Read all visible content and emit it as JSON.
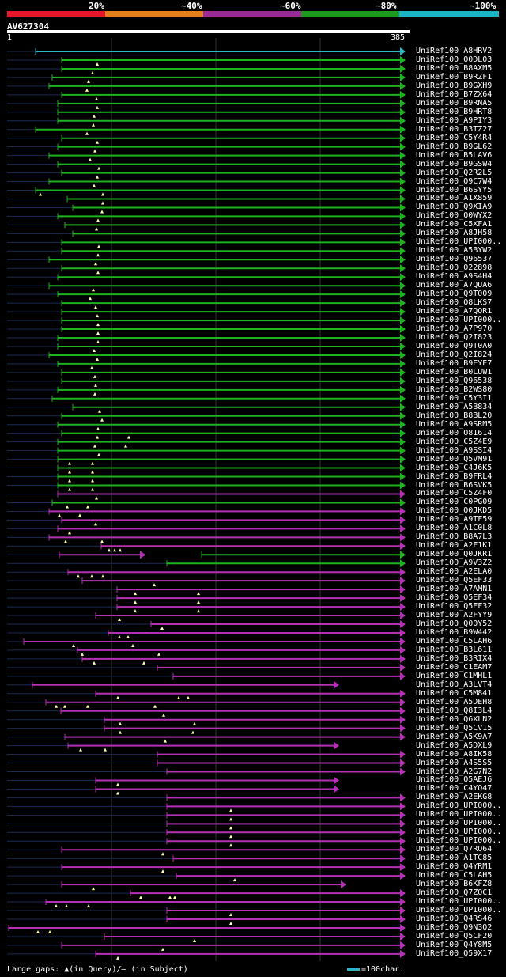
{
  "legend": {
    "labels": [
      "20%",
      "~40%",
      "~60%",
      "~80%",
      "~100%"
    ],
    "colors": [
      "#e8162a",
      "#e57f1c",
      "#9a2a96",
      "#1c9a1c",
      "#1bb4c4"
    ]
  },
  "query": {
    "name": "AV627304",
    "start": "1",
    "end": "385"
  },
  "footer": {
    "gaps": "Large gaps: ▲(in Query)/— (in Subject)",
    "scale": "=100char."
  },
  "hits": [
    {
      "name": "UniRef100_A8HRV2",
      "start": 45,
      "color": "cyan",
      "tri": [],
      "dash": []
    },
    {
      "name": "UniRef100_Q0DL03",
      "start": 78,
      "color": "green",
      "tri": [
        123
      ],
      "dash": []
    },
    {
      "name": "UniRef100_B8AXM5",
      "start": 78,
      "color": "green",
      "tri": [
        117
      ],
      "dash": []
    },
    {
      "name": "UniRef100_B9RZF1",
      "start": 66,
      "color": "green",
      "tri": [
        112
      ],
      "dash": []
    },
    {
      "name": "UniRef100_B9GXH9",
      "start": 62,
      "color": "green",
      "tri": [
        110
      ],
      "dash": []
    },
    {
      "name": "UniRef100_B7ZX64",
      "start": 78,
      "color": "green",
      "tri": [
        122
      ],
      "dash": []
    },
    {
      "name": "UniRef100_B9RNA5",
      "start": 73,
      "color": "green",
      "tri": [
        123
      ],
      "dash": []
    },
    {
      "name": "UniRef100_B9HRT8",
      "start": 73,
      "color": "green",
      "tri": [
        119
      ],
      "dash": []
    },
    {
      "name": "UniRef100_A9PIY3",
      "start": 73,
      "color": "green",
      "tri": [
        118
      ],
      "dash": []
    },
    {
      "name": "UniRef100_B3TZ27",
      "start": 45,
      "color": "green",
      "tri": [
        110
      ],
      "dash": []
    },
    {
      "name": "UniRef100_C5Y4R4",
      "start": 78,
      "color": "green",
      "tri": [
        123
      ],
      "dash": []
    },
    {
      "name": "UniRef100_B9GL62",
      "start": 73,
      "color": "green",
      "tri": [
        120
      ],
      "dash": []
    },
    {
      "name": "UniRef100_B5LAV6",
      "start": 62,
      "color": "green",
      "tri": [
        114
      ],
      "dash": []
    },
    {
      "name": "UniRef100_B9GSW4",
      "start": 73,
      "color": "green",
      "tri": [
        125
      ],
      "dash": []
    },
    {
      "name": "UniRef100_Q2R2L5",
      "start": 78,
      "color": "green",
      "tri": [
        123
      ],
      "dash": []
    },
    {
      "name": "UniRef100_Q9C7W4",
      "start": 62,
      "color": "green",
      "tri": [
        119
      ],
      "dash": []
    },
    {
      "name": "UniRef100_B6SYY5",
      "start": 45,
      "color": "green",
      "tri": [
        51,
        130
      ],
      "dash": []
    },
    {
      "name": "UniRef100_A1X859",
      "start": 85,
      "color": "green",
      "tri": [
        130
      ],
      "dash": []
    },
    {
      "name": "UniRef100_Q9XIA9",
      "start": 92,
      "color": "green",
      "tri": [
        129
      ],
      "dash": []
    },
    {
      "name": "UniRef100_Q0WYX2",
      "start": 73,
      "color": "green",
      "tri": [
        124
      ],
      "dash": []
    },
    {
      "name": "UniRef100_C5XFA1",
      "start": 82,
      "color": "green",
      "tri": [
        122
      ],
      "dash": []
    },
    {
      "name": "UniRef100_A8JH58",
      "start": 92,
      "color": "green",
      "tri": [],
      "dash": []
    },
    {
      "name": "UniRef100_UPI000..",
      "start": 78,
      "color": "green",
      "tri": [
        125
      ],
      "dash": []
    },
    {
      "name": "UniRef100_A5BYW2",
      "start": 78,
      "color": "green",
      "tri": [
        124
      ],
      "dash": []
    },
    {
      "name": "UniRef100_Q96537",
      "start": 62,
      "color": "green",
      "tri": [
        121
      ],
      "dash": []
    },
    {
      "name": "UniRef100_O22898",
      "start": 78,
      "color": "green",
      "tri": [
        124
      ],
      "dash": []
    },
    {
      "name": "UniRef100_A9S4H4",
      "start": 73,
      "color": "green",
      "tri": [],
      "dash": []
    },
    {
      "name": "UniRef100_A7QUA6",
      "start": 62,
      "color": "green",
      "tri": [
        118
      ],
      "dash": []
    },
    {
      "name": "UniRef100_Q9T009",
      "start": 73,
      "color": "green",
      "tri": [
        114
      ],
      "dash": []
    },
    {
      "name": "UniRef100_Q8LKS7",
      "start": 78,
      "color": "green",
      "tri": [
        121
      ],
      "dash": []
    },
    {
      "name": "UniRef100_A7QQR1",
      "start": 78,
      "color": "green",
      "tri": [
        123
      ],
      "dash": []
    },
    {
      "name": "UniRef100_UPI000..",
      "start": 78,
      "color": "green",
      "tri": [
        124
      ],
      "dash": []
    },
    {
      "name": "UniRef100_A7P970",
      "start": 78,
      "color": "green",
      "tri": [
        124
      ],
      "dash": []
    },
    {
      "name": "UniRef100_Q2I823",
      "start": 73,
      "color": "green",
      "tri": [
        124
      ],
      "dash": []
    },
    {
      "name": "UniRef100_Q9T0A0",
      "start": 73,
      "color": "green",
      "tri": [
        119
      ],
      "dash": []
    },
    {
      "name": "UniRef100_Q2I824",
      "start": 62,
      "color": "green",
      "tri": [
        123
      ],
      "dash": []
    },
    {
      "name": "UniRef100_B9EYE7",
      "start": 73,
      "color": "green",
      "tri": [
        116
      ],
      "dash": []
    },
    {
      "name": "UniRef100_B0LUW1",
      "start": 78,
      "color": "green",
      "tri": [
        120
      ],
      "dash": []
    },
    {
      "name": "UniRef100_Q96538",
      "start": 78,
      "color": "green",
      "tri": [
        121
      ],
      "dash": []
    },
    {
      "name": "UniRef100_B2WS80",
      "start": 73,
      "color": "green",
      "tri": [
        120
      ],
      "dash": []
    },
    {
      "name": "UniRef100_C5Y3I1",
      "start": 66,
      "color": "green",
      "tri": [],
      "dash": []
    },
    {
      "name": "UniRef100_A5B834",
      "start": 92,
      "color": "green",
      "tri": [
        126
      ],
      "dash": []
    },
    {
      "name": "UniRef100_B8BL20",
      "start": 78,
      "color": "green",
      "tri": [
        129
      ],
      "dash": []
    },
    {
      "name": "UniRef100_A9SRM5",
      "start": 73,
      "color": "green",
      "tri": [
        124
      ],
      "dash": []
    },
    {
      "name": "UniRef100_O81614",
      "start": 78,
      "color": "green",
      "tri": [
        123,
        163
      ],
      "dash": []
    },
    {
      "name": "UniRef100_C5Z4E9",
      "start": 73,
      "color": "green",
      "tri": [
        120,
        159
      ],
      "dash": []
    },
    {
      "name": "UniRef100_A9SSI4",
      "start": 73,
      "color": "green",
      "tri": [
        125
      ],
      "dash": []
    },
    {
      "name": "UniRef100_Q5VM91",
      "start": 73,
      "color": "green",
      "tri": [
        88,
        117
      ],
      "dash": []
    },
    {
      "name": "UniRef100_C4J6K5",
      "start": 73,
      "color": "green",
      "tri": [
        88,
        117
      ],
      "dash": []
    },
    {
      "name": "UniRef100_B9FRL4",
      "start": 73,
      "color": "green",
      "tri": [
        88,
        117
      ],
      "dash": []
    },
    {
      "name": "UniRef100_B6SVK5",
      "start": 73,
      "color": "green",
      "tri": [
        88,
        117
      ],
      "dash": []
    },
    {
      "name": "UniRef100_C5Z4F0",
      "start": 73,
      "color": "purple",
      "tri": [
        122
      ],
      "dash": []
    },
    {
      "name": "UniRef100_C0PG09",
      "start": 66,
      "color": "green",
      "tri": [
        85,
        111
      ],
      "dash": []
    },
    {
      "name": "UniRef100_Q0JKD5",
      "start": 62,
      "color": "purple",
      "tri": [
        75,
        101
      ],
      "dash": []
    },
    {
      "name": "UniRef100_A9TF59",
      "start": 78,
      "color": "purple",
      "tri": [
        121
      ],
      "dash": []
    },
    {
      "name": "UniRef100_A1C0L8",
      "start": 73,
      "color": "purple",
      "tri": [
        88
      ],
      "dash": []
    },
    {
      "name": "UniRef100_B8A7L3",
      "start": 62,
      "color": "purple",
      "tri": [
        83,
        129
      ],
      "dash": []
    },
    {
      "name": "UniRef100_A2F1K1",
      "start": 128,
      "color": "purple",
      "tri": [
        138,
        145,
        152
      ],
      "dash": []
    },
    {
      "name": "UniRef100_Q0JKR1",
      "start": 75,
      "end": 183,
      "color": "purple",
      "start2": 255,
      "color2": "green",
      "tri": [],
      "dash": []
    },
    {
      "name": "UniRef100_A9V3Z2",
      "start": 211,
      "color": "green",
      "tri": [],
      "dash": []
    },
    {
      "name": "UniRef100_A2ELA0",
      "start": 86,
      "color": "purple",
      "tri": [
        99,
        116,
        130
      ],
      "dash": []
    },
    {
      "name": "UniRef100_Q5EF33",
      "start": 104,
      "color": "purple",
      "tri": [
        195
      ],
      "dash": []
    },
    {
      "name": "UniRef100_A7AMN1",
      "start": 148,
      "color": "purple",
      "tri": [
        171,
        251
      ],
      "dash": []
    },
    {
      "name": "UniRef100_Q5EF34",
      "start": 148,
      "color": "purple",
      "tri": [
        171,
        251
      ],
      "dash": []
    },
    {
      "name": "UniRef100_Q5EF32",
      "start": 148,
      "color": "purple",
      "tri": [
        171,
        251
      ],
      "dash": []
    },
    {
      "name": "UniRef100_A2FYY9",
      "start": 121,
      "color": "purple",
      "tri": [
        151
      ],
      "dash": []
    },
    {
      "name": "UniRef100_Q00Y52",
      "start": 191,
      "color": "purple",
      "tri": [
        205
      ],
      "dash": []
    },
    {
      "name": "UniRef100_B9W442",
      "start": 137,
      "color": "purple",
      "tri": [
        151,
        162
      ],
      "dash": []
    },
    {
      "name": "UniRef100_C5LAH6",
      "start": 30,
      "color": "purple",
      "tri": [
        93,
        168
      ],
      "dash": []
    },
    {
      "name": "UniRef100_B3L611",
      "start": 98,
      "color": "purple",
      "tri": [
        104,
        201
      ],
      "dash": []
    },
    {
      "name": "UniRef100_B3RIX4",
      "start": 104,
      "color": "purple",
      "tri": [
        119,
        182
      ],
      "dash": []
    },
    {
      "name": "UniRef100_C1EAM7",
      "start": 199,
      "color": "purple",
      "tri": [],
      "dash": []
    },
    {
      "name": "UniRef100_C1MHL1",
      "start": 219,
      "color": "purple",
      "tri": [],
      "dash": []
    },
    {
      "name": "UniRef100_A3LVT4",
      "start": 41,
      "end": 428,
      "color": "purple",
      "tri": [],
      "dash": []
    },
    {
      "name": "UniRef100_C5M841",
      "start": 121,
      "color": "purple",
      "tri": [
        149,
        226,
        238
      ],
      "dash": []
    },
    {
      "name": "UniRef100_A5DEH8",
      "start": 58,
      "color": "purple",
      "tri": [
        71,
        82,
        111,
        196
      ],
      "dash": []
    },
    {
      "name": "UniRef100_Q8I3L4",
      "start": 77,
      "color": "purple",
      "tri": [
        207
      ],
      "dash": []
    },
    {
      "name": "UniRef100_Q6XLN2",
      "start": 132,
      "color": "purple",
      "tri": [
        152,
        246
      ],
      "dash": []
    },
    {
      "name": "UniRef100_Q5CV15",
      "start": 132,
      "color": "purple",
      "tri": [
        152,
        244
      ],
      "dash": []
    },
    {
      "name": "UniRef100_A5K9A7",
      "start": 82,
      "color": "purple",
      "tri": [
        209
      ],
      "dash": []
    },
    {
      "name": "UniRef100_A5DXL9",
      "start": 86,
      "end": 428,
      "color": "purple",
      "tri": [
        102,
        133
      ],
      "dash": []
    },
    {
      "name": "UniRef100_A8IK58",
      "start": 199,
      "color": "purple",
      "tri": [],
      "dash": []
    },
    {
      "name": "UniRef100_A4S5S5",
      "start": 199,
      "color": "purple",
      "tri": [],
      "dash": []
    },
    {
      "name": "UniRef100_A2G7N2",
      "start": 211,
      "color": "purple",
      "tri": [],
      "dash": []
    },
    {
      "name": "UniRef100_Q5AEJ6",
      "start": 121,
      "end": 428,
      "color": "purple",
      "tri": [
        149
      ],
      "dash": []
    },
    {
      "name": "UniRef100_C4YQ47",
      "start": 121,
      "end": 428,
      "color": "purple",
      "tri": [
        149
      ],
      "dash": []
    },
    {
      "name": "UniRef100_A2EKG8",
      "start": 211,
      "color": "purple",
      "tri": [],
      "dash": []
    },
    {
      "name": "UniRef100_UPI000..",
      "start": 211,
      "color": "purple",
      "tri": [
        292
      ],
      "dash": []
    },
    {
      "name": "UniRef100_UPI000..",
      "start": 211,
      "color": "purple",
      "tri": [
        292
      ],
      "dash": []
    },
    {
      "name": "UniRef100_UPI000..",
      "start": 211,
      "color": "purple",
      "tri": [
        292
      ],
      "dash": []
    },
    {
      "name": "UniRef100_UPI000..",
      "start": 211,
      "color": "purple",
      "tri": [
        292
      ],
      "dash": []
    },
    {
      "name": "UniRef100_UPI000..",
      "start": 211,
      "color": "purple",
      "tri": [
        292
      ],
      "dash": []
    },
    {
      "name": "UniRef100_Q7RQ64",
      "start": 78,
      "color": "purple",
      "tri": [
        206
      ],
      "dash": []
    },
    {
      "name": "UniRef100_A1TC85",
      "start": 219,
      "color": "purple",
      "tri": [],
      "dash": []
    },
    {
      "name": "UniRef100_Q4YRM1",
      "start": 78,
      "color": "purple",
      "tri": [
        206
      ],
      "dash": []
    },
    {
      "name": "UniRef100_C5LAH5",
      "start": 223,
      "color": "purple",
      "tri": [
        297
      ],
      "dash": []
    },
    {
      "name": "UniRef100_B6KFZ8",
      "start": 78,
      "end": 437,
      "color": "purple",
      "tri": [
        118
      ],
      "dash": []
    },
    {
      "name": "UniRef100_Q7ZOC1",
      "start": 165,
      "color": "purple",
      "tri": [
        178,
        215,
        221
      ],
      "dash": []
    },
    {
      "name": "UniRef100_UPI000..",
      "start": 58,
      "color": "purple",
      "tri": [
        71,
        84,
        112
      ],
      "dash": []
    },
    {
      "name": "UniRef100_UPI000..",
      "start": 211,
      "color": "purple",
      "tri": [
        292
      ],
      "dash": []
    },
    {
      "name": "UniRef100_Q4RS46",
      "start": 211,
      "color": "purple",
      "tri": [
        292
      ],
      "dash": []
    },
    {
      "name": "UniRef100_Q9N3Q2",
      "start": 11,
      "color": "purple",
      "tri": [
        48,
        63
      ],
      "dash": []
    },
    {
      "name": "UniRef100_Q5CF20",
      "start": 132,
      "color": "purple",
      "tri": [
        246
      ],
      "dash": []
    },
    {
      "name": "UniRef100_Q4Y8M5",
      "start": 78,
      "color": "purple",
      "tri": [
        206
      ],
      "dash": []
    },
    {
      "name": "UniRef100_Q59X17",
      "start": 121,
      "color": "purple",
      "tri": [
        149
      ],
      "dash": []
    }
  ]
}
